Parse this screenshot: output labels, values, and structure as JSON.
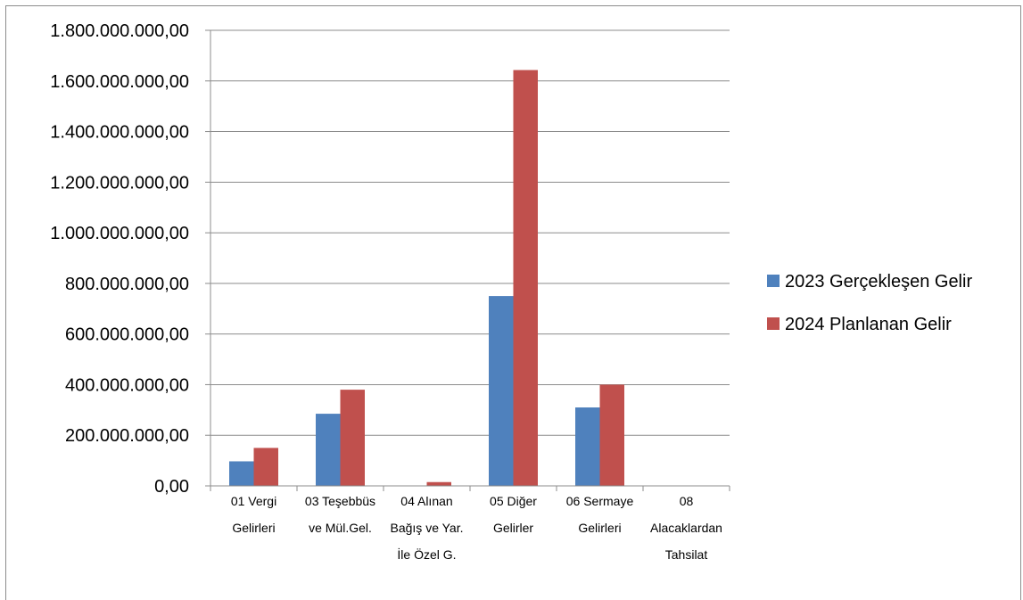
{
  "chart_data": {
    "type": "bar",
    "categories": [
      [
        "01 Vergi",
        "Gelirleri"
      ],
      [
        "03 Teşebbüs",
        "ve Mül.Gel."
      ],
      [
        "04 Alınan",
        "Bağış ve Yar.",
        "İle Özel G."
      ],
      [
        "05 Diğer",
        "Gelirler"
      ],
      [
        "06 Sermaye",
        "Gelirleri"
      ],
      [
        "08",
        "Alacaklardan",
        "Tahsilat"
      ]
    ],
    "series": [
      {
        "name": "2023 Gerçekleşen Gelir",
        "color": "#4f81bd",
        "values": [
          97000000,
          285000000,
          0,
          750000000,
          310000000,
          0
        ]
      },
      {
        "name": "2024 Planlanan Gelir",
        "color": "#c0504d",
        "values": [
          150000000,
          380000000,
          15000000,
          1643000000,
          400000000,
          0
        ]
      }
    ],
    "ylim": [
      0,
      1800000000
    ],
    "yticks": [
      0,
      200000000,
      400000000,
      600000000,
      800000000,
      1000000000,
      1200000000,
      1400000000,
      1600000000,
      1800000000
    ],
    "ytick_labels": [
      "0,00",
      "200.000.000,00",
      "400.000.000,00",
      "600.000.000,00",
      "800.000.000,00",
      "1.000.000.000,00",
      "1.200.000.000,00",
      "1.400.000.000,00",
      "1.600.000.000,00",
      "1.800.000.000,00"
    ],
    "grid": true,
    "legend_position": "right"
  }
}
